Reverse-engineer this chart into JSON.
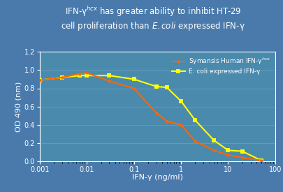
{
  "bg_color": "#4a7aab",
  "plot_bg_color": "#4a8aad",
  "grid_color": "#6a9dbe",
  "title_color": "white",
  "axis_color": "white",
  "tick_color": "white",
  "label_color": "white",
  "symansis_x": [
    0.001,
    0.003,
    0.007,
    0.01,
    0.03,
    0.1,
    0.3,
    0.5,
    1,
    2,
    5,
    10,
    20,
    50
  ],
  "symansis_y": [
    0.89,
    0.92,
    0.96,
    0.97,
    0.88,
    0.8,
    0.53,
    0.44,
    0.4,
    0.22,
    0.12,
    0.07,
    0.04,
    0.01
  ],
  "symansis_color": "#ff6600",
  "symansis_label": "Symansis Human IFN-γ$^{hcx}$",
  "ecoli_x": [
    0.001,
    0.003,
    0.007,
    0.01,
    0.03,
    0.1,
    0.3,
    0.5,
    1,
    2,
    5,
    10,
    20,
    50
  ],
  "ecoli_y": [
    0.89,
    0.92,
    0.94,
    0.94,
    0.94,
    0.9,
    0.82,
    0.81,
    0.66,
    0.45,
    0.23,
    0.12,
    0.11,
    0.01
  ],
  "ecoli_color": "#ffff00",
  "ecoli_label": "E. coli expressed IFN-γ",
  "xlabel": "IFN-γ (ng/ml)",
  "ylabel": "OD 490 (nm)",
  "xlim": [
    0.001,
    100
  ],
  "ylim": [
    0,
    1.2
  ],
  "yticks": [
    0,
    0.2,
    0.4,
    0.6,
    0.8,
    1.0,
    1.2
  ],
  "xticks": [
    0.001,
    0.01,
    0.1,
    1,
    10,
    100
  ],
  "xticklabels": [
    "0.001",
    "0.01",
    "0.1",
    "1",
    "10",
    "100"
  ]
}
